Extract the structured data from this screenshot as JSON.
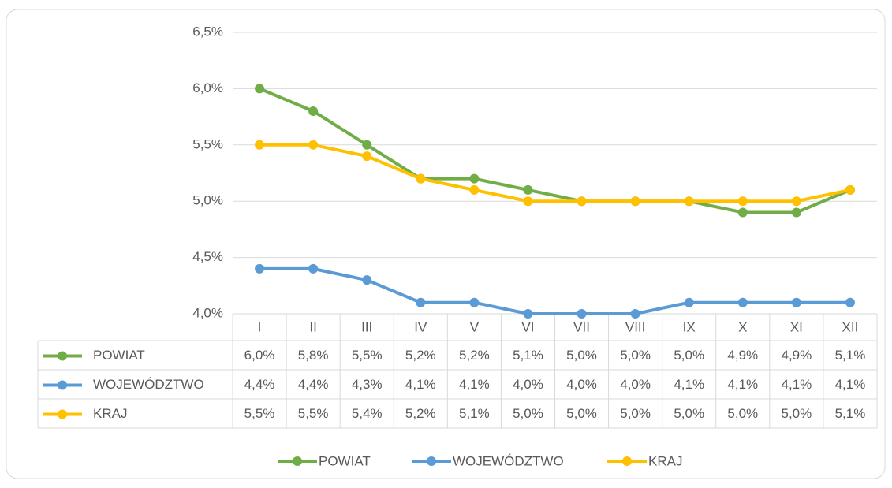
{
  "chart_data": {
    "type": "line",
    "categories": [
      "I",
      "II",
      "III",
      "IV",
      "V",
      "VI",
      "VII",
      "VIII",
      "IX",
      "X",
      "XI",
      "XII"
    ],
    "series": [
      {
        "name": "POWIAT",
        "color": "#70ad47",
        "values": [
          6.0,
          5.8,
          5.5,
          5.2,
          5.2,
          5.1,
          5.0,
          5.0,
          5.0,
          4.9,
          4.9,
          5.1
        ],
        "value_labels": [
          "6,0%",
          "5,8%",
          "5,5%",
          "5,2%",
          "5,2%",
          "5,1%",
          "5,0%",
          "5,0%",
          "5,0%",
          "4,9%",
          "4,9%",
          "5,1%"
        ]
      },
      {
        "name": "WOJEWÓDZTWO",
        "color": "#5b9bd5",
        "values": [
          4.4,
          4.4,
          4.3,
          4.1,
          4.1,
          4.0,
          4.0,
          4.0,
          4.1,
          4.1,
          4.1,
          4.1
        ],
        "value_labels": [
          "4,4%",
          "4,4%",
          "4,3%",
          "4,1%",
          "4,1%",
          "4,0%",
          "4,0%",
          "4,0%",
          "4,1%",
          "4,1%",
          "4,1%",
          "4,1%"
        ]
      },
      {
        "name": "KRAJ",
        "color": "#ffc000",
        "values": [
          5.5,
          5.5,
          5.4,
          5.2,
          5.1,
          5.0,
          5.0,
          5.0,
          5.0,
          5.0,
          5.0,
          5.1
        ],
        "value_labels": [
          "5,5%",
          "5,5%",
          "5,4%",
          "5,2%",
          "5,1%",
          "5,0%",
          "5,0%",
          "5,0%",
          "5,0%",
          "5,0%",
          "5,0%",
          "5,1%"
        ]
      }
    ],
    "ylim": [
      4.0,
      6.5
    ],
    "yticks": [
      {
        "value": 4.0,
        "label": "4,0%"
      },
      {
        "value": 4.5,
        "label": "4,5%"
      },
      {
        "value": 5.0,
        "label": "5,0%"
      },
      {
        "value": 5.5,
        "label": "5,5%"
      },
      {
        "value": 6.0,
        "label": "6,0%"
      },
      {
        "value": 6.5,
        "label": "6,5%"
      }
    ],
    "grid": true,
    "legend": "bottom"
  }
}
